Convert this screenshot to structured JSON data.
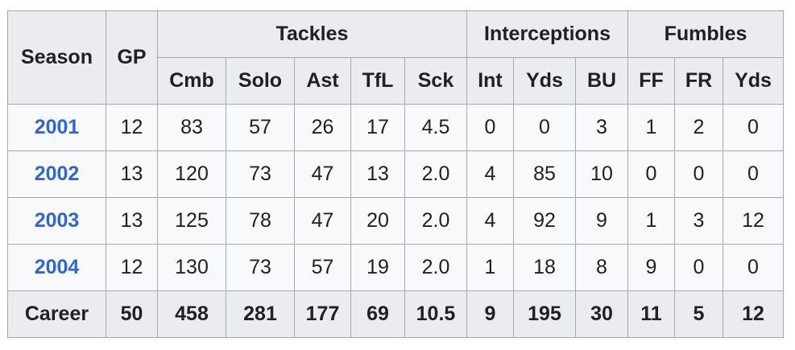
{
  "table": {
    "header": {
      "season": "Season",
      "gp": "GP",
      "groups": {
        "tackles": "Tackles",
        "interceptions": "Interceptions",
        "fumbles": "Fumbles"
      },
      "sub": {
        "cmb": "Cmb",
        "solo": "Solo",
        "ast": "Ast",
        "tfl": "TfL",
        "sck": "Sck",
        "int": "Int",
        "int_yds": "Yds",
        "bu": "BU",
        "ff": "FF",
        "fr": "FR",
        "fum_yds": "Yds"
      }
    },
    "rows": [
      {
        "season": "2001",
        "gp": "12",
        "cmb": "83",
        "solo": "57",
        "ast": "26",
        "tfl": "17",
        "sck": "4.5",
        "int": "0",
        "int_yds": "0",
        "bu": "3",
        "ff": "1",
        "fr": "2",
        "fum_yds": "0"
      },
      {
        "season": "2002",
        "gp": "13",
        "cmb": "120",
        "solo": "73",
        "ast": "47",
        "tfl": "13",
        "sck": "2.0",
        "int": "4",
        "int_yds": "85",
        "bu": "10",
        "ff": "0",
        "fr": "0",
        "fum_yds": "0"
      },
      {
        "season": "2003",
        "gp": "13",
        "cmb": "125",
        "solo": "78",
        "ast": "47",
        "tfl": "20",
        "sck": "2.0",
        "int": "4",
        "int_yds": "92",
        "bu": "9",
        "ff": "1",
        "fr": "3",
        "fum_yds": "12"
      },
      {
        "season": "2004",
        "gp": "12",
        "cmb": "130",
        "solo": "73",
        "ast": "57",
        "tfl": "19",
        "sck": "2.0",
        "int": "1",
        "int_yds": "18",
        "bu": "8",
        "ff": "9",
        "fr": "0",
        "fum_yds": "0"
      }
    ],
    "career": {
      "season": "Career",
      "gp": "50",
      "cmb": "458",
      "solo": "281",
      "ast": "177",
      "tfl": "69",
      "sck": "10.5",
      "int": "9",
      "int_yds": "195",
      "bu": "30",
      "ff": "11",
      "fr": "5",
      "fum_yds": "12"
    }
  },
  "colors": {
    "header_bg": "#eaecf0",
    "cell_bg": "#f8f9fa",
    "border": "#a2a9b1",
    "link": "#3366cc",
    "text": "#202122"
  }
}
